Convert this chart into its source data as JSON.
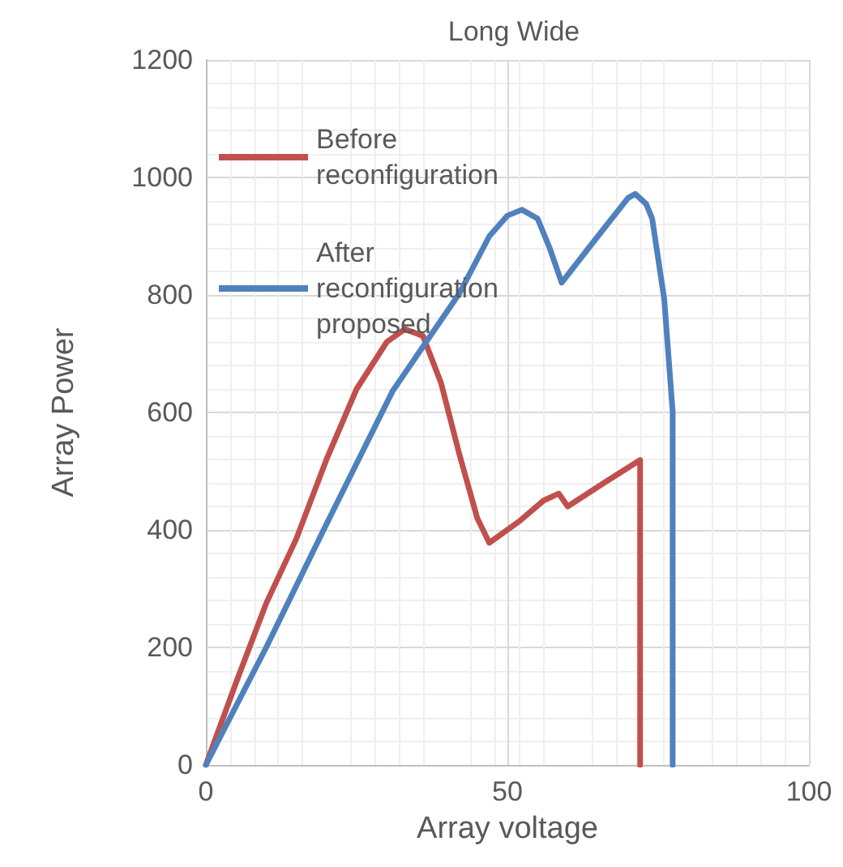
{
  "chart_data": {
    "type": "line",
    "title": "Long Wide",
    "xlabel": "Array voltage",
    "ylabel": "Array Power",
    "xlim": [
      0,
      100
    ],
    "xticks": [
      0,
      50,
      100
    ],
    "ylim": [
      0,
      1200
    ],
    "yticks": [
      0,
      200,
      400,
      600,
      800,
      1000,
      1200
    ],
    "grid": true,
    "legend": "top left",
    "marker": "none",
    "line_style": "solid",
    "series": [
      {
        "name": "Before reconfiguration",
        "color": "#c0504d",
        "x": [
          0,
          5,
          10,
          15,
          20,
          25,
          30,
          33,
          36,
          39,
          42,
          45,
          47,
          52,
          56,
          58.5,
          60,
          66,
          72,
          72
        ],
        "values": [
          0,
          140,
          275,
          385,
          520,
          640,
          720,
          742,
          730,
          650,
          530,
          420,
          378,
          415,
          450,
          462,
          440,
          480,
          519,
          0
        ]
      },
      {
        "name": "After reconfiguration proposed",
        "color": "#4f81bd",
        "x": [
          0,
          10,
          20,
          31,
          42,
          47,
          50,
          52.4,
          55,
          57,
          59,
          65,
          70,
          71.2,
          73,
          74,
          76,
          77.4,
          77.4
        ],
        "values": [
          0,
          200,
          410,
          637,
          802,
          900,
          935,
          945,
          930,
          880,
          821,
          900,
          965,
          972,
          955,
          930,
          793,
          601,
          0
        ]
      }
    ]
  }
}
